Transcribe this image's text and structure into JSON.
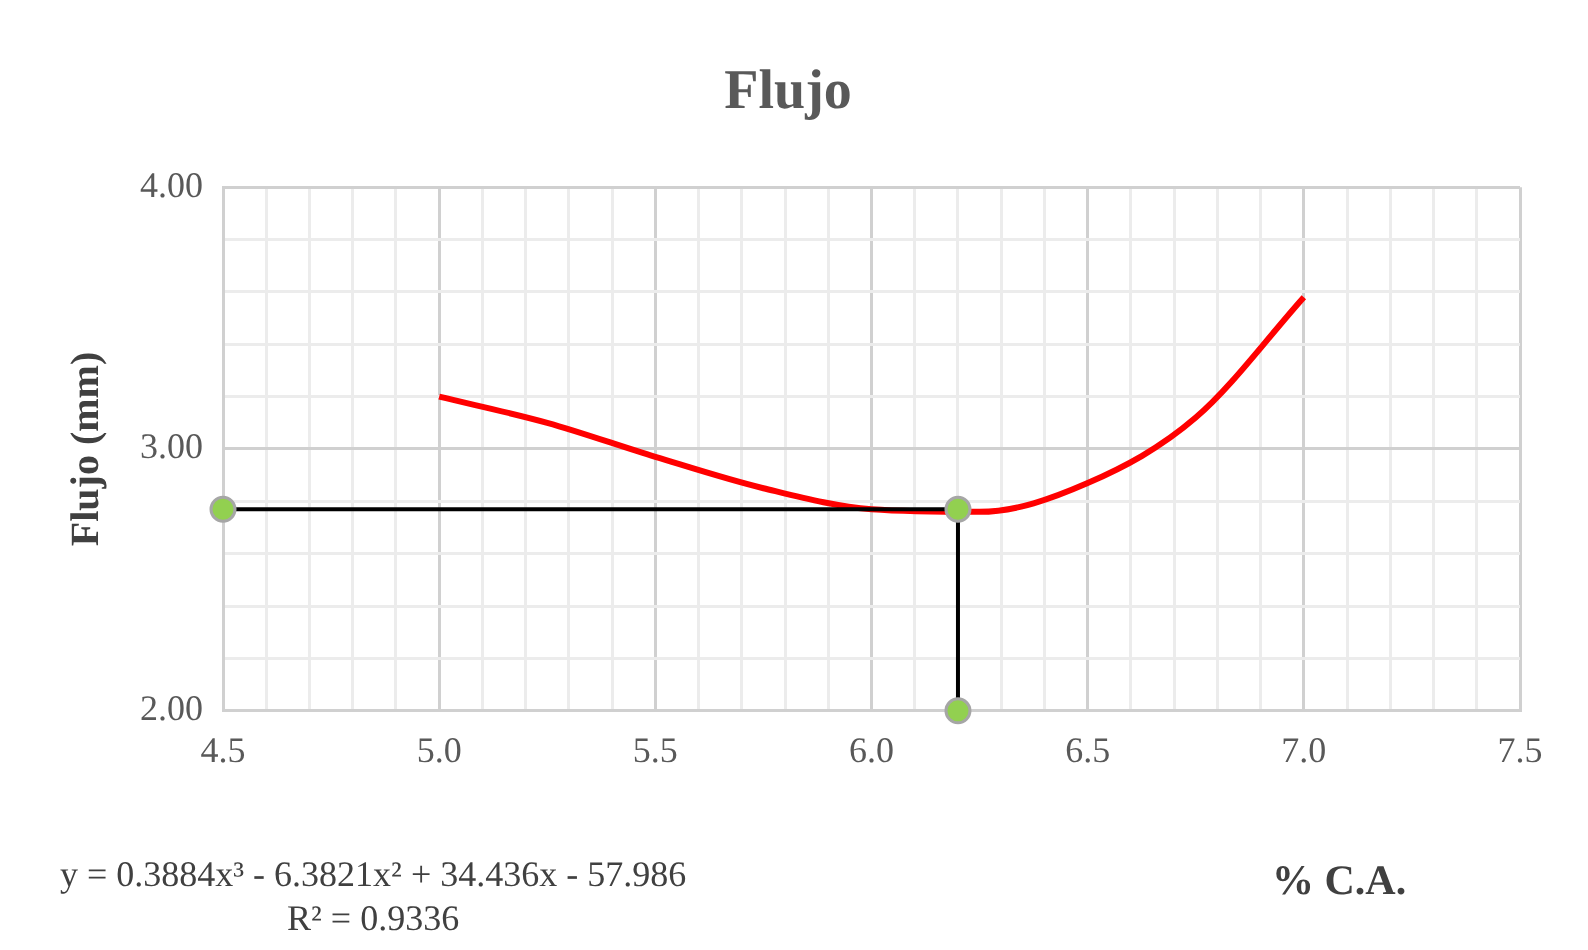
{
  "chart_data": {
    "type": "line",
    "title": "Flujo",
    "xlabel": "% C.A.",
    "ylabel": "Flujo (mm)",
    "annotations": [
      "y = 0.3884x³ - 6.3821x² + 34.436x - 57.986",
      "R² = 0.9336"
    ],
    "xlim": [
      4.5,
      7.5
    ],
    "xticks": [
      {
        "value": 4.5,
        "label": "4.5"
      },
      {
        "value": 4.6,
        "label": null
      },
      {
        "value": 4.7,
        "label": null
      },
      {
        "value": 4.8,
        "label": null
      },
      {
        "value": 4.9,
        "label": null
      },
      {
        "value": 5,
        "label": "5.0"
      },
      {
        "value": 5.1,
        "label": null
      },
      {
        "value": 5.2,
        "label": null
      },
      {
        "value": 5.3,
        "label": null
      },
      {
        "value": 5.4,
        "label": null
      },
      {
        "value": 5.5,
        "label": "5.5"
      },
      {
        "value": 5.6,
        "label": null
      },
      {
        "value": 5.7,
        "label": null
      },
      {
        "value": 5.8,
        "label": null
      },
      {
        "value": 5.9,
        "label": null
      },
      {
        "value": 6,
        "label": "6.0"
      },
      {
        "value": 6.1,
        "label": null
      },
      {
        "value": 6.2,
        "label": null
      },
      {
        "value": 6.3,
        "label": null
      },
      {
        "value": 6.4,
        "label": null
      },
      {
        "value": 6.5,
        "label": "6.5"
      },
      {
        "value": 6.6,
        "label": null
      },
      {
        "value": 6.7,
        "label": null
      },
      {
        "value": 6.8,
        "label": null
      },
      {
        "value": 6.9,
        "label": null
      },
      {
        "value": 7,
        "label": "7.0"
      },
      {
        "value": 7.1,
        "label": null
      },
      {
        "value": 7.2,
        "label": null
      },
      {
        "value": 7.3,
        "label": null
      },
      {
        "value": 7.4,
        "label": null
      },
      {
        "value": 7.5,
        "label": "7.5"
      }
    ],
    "ylim": [
      2,
      4
    ],
    "yticks": [
      {
        "value": 2,
        "label": "2.00"
      },
      {
        "value": 2.2,
        "label": null
      },
      {
        "value": 2.4,
        "label": null
      },
      {
        "value": 2.6,
        "label": null
      },
      {
        "value": 2.8,
        "label": null
      },
      {
        "value": 3,
        "label": "3.00"
      },
      {
        "value": 3.2,
        "label": null
      },
      {
        "value": 3.4,
        "label": null
      },
      {
        "value": 3.6,
        "label": null
      },
      {
        "value": 3.8,
        "label": null
      },
      {
        "value": 4,
        "label": "4.00"
      }
    ],
    "grid": true,
    "legend": false,
    "series": [
      {
        "color": "#ff0000",
        "marker": "none",
        "x": [
          5,
          5.25,
          5.5,
          5.75,
          6,
          6.25,
          6.5,
          6.75,
          7
        ],
        "values": [
          3.2,
          3.1,
          2.97,
          2.85,
          2.77,
          2.76,
          2.87,
          3.12,
          3.58
        ]
      },
      {
        "color": "#000000",
        "colors": [
          "#92d050",
          "#92d050",
          "#92d050"
        ],
        "marker": "circle",
        "x": [
          4.5,
          6.2,
          6.2
        ],
        "values": [
          2.77,
          2.77,
          2
        ]
      }
    ]
  }
}
